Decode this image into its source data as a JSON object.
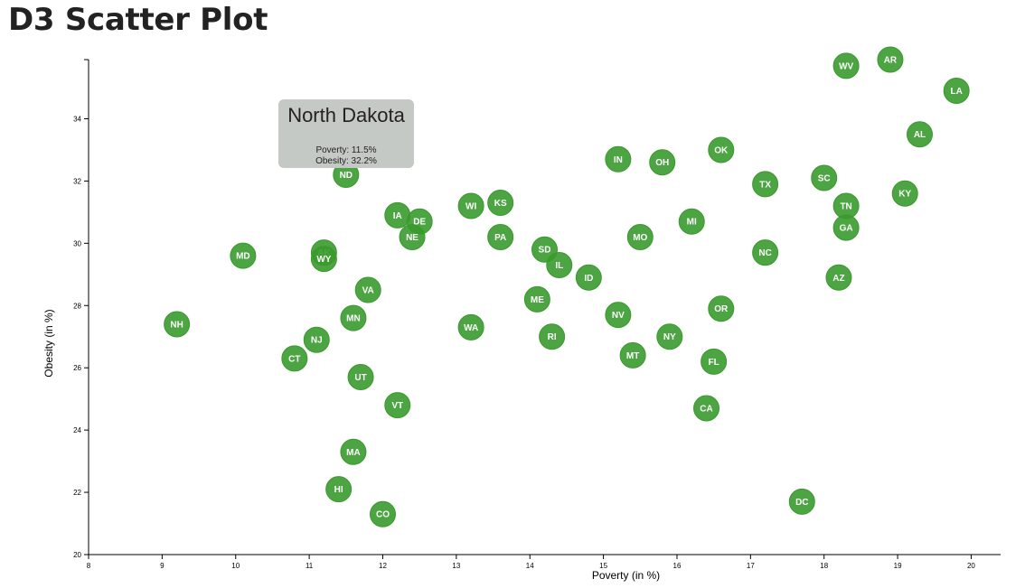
{
  "page": {
    "title": "D3 Scatter Plot"
  },
  "tooltip": {
    "state": "North Dakota",
    "poverty_line": "Poverty: 11.5%",
    "obesity_line": "Obesity: 32.2%"
  },
  "colors": {
    "point_fill": "#3a9a2e",
    "tooltip_bg": "#c5c9c5"
  },
  "chart_data": {
    "type": "scatter",
    "title": "D3 Scatter Plot",
    "xlabel": "Poverty (in %)",
    "ylabel": "Obesity (in %)",
    "xlim": [
      8,
      20.4
    ],
    "ylim": [
      20,
      35.9
    ],
    "xticks": [
      8,
      9,
      10,
      11,
      12,
      13,
      14,
      15,
      16,
      17,
      18,
      19,
      20
    ],
    "yticks": [
      20,
      22,
      24,
      26,
      28,
      30,
      32,
      34
    ],
    "grid": false,
    "points": [
      {
        "label": "WV",
        "x": 18.3,
        "y": 35.7
      },
      {
        "label": "AR",
        "x": 18.9,
        "y": 35.9
      },
      {
        "label": "LA",
        "x": 19.8,
        "y": 34.9
      },
      {
        "label": "AL",
        "x": 19.3,
        "y": 33.5
      },
      {
        "label": "OK",
        "x": 16.6,
        "y": 33.0
      },
      {
        "label": "IN",
        "x": 15.2,
        "y": 32.7
      },
      {
        "label": "OH",
        "x": 15.8,
        "y": 32.6
      },
      {
        "label": "ND",
        "x": 11.5,
        "y": 32.2
      },
      {
        "label": "SC",
        "x": 18.0,
        "y": 32.1
      },
      {
        "label": "TX",
        "x": 17.2,
        "y": 31.9
      },
      {
        "label": "KY",
        "x": 19.1,
        "y": 31.6
      },
      {
        "label": "KS",
        "x": 13.6,
        "y": 31.3
      },
      {
        "label": "WI",
        "x": 13.2,
        "y": 31.2
      },
      {
        "label": "TN",
        "x": 18.3,
        "y": 31.2
      },
      {
        "label": "IA",
        "x": 12.2,
        "y": 30.9
      },
      {
        "label": "DE",
        "x": 12.5,
        "y": 30.7
      },
      {
        "label": "MI",
        "x": 16.2,
        "y": 30.7
      },
      {
        "label": "GA",
        "x": 18.3,
        "y": 30.5
      },
      {
        "label": "NE",
        "x": 12.4,
        "y": 30.2
      },
      {
        "label": "PA",
        "x": 13.6,
        "y": 30.2
      },
      {
        "label": "MO",
        "x": 15.5,
        "y": 30.2
      },
      {
        "label": "SD",
        "x": 14.2,
        "y": 29.8
      },
      {
        "label": "AK",
        "x": 11.2,
        "y": 29.7
      },
      {
        "label": "NC",
        "x": 17.2,
        "y": 29.7
      },
      {
        "label": "MD",
        "x": 10.1,
        "y": 29.6
      },
      {
        "label": "WY",
        "x": 11.2,
        "y": 29.5
      },
      {
        "label": "IL",
        "x": 14.4,
        "y": 29.3
      },
      {
        "label": "ID",
        "x": 14.8,
        "y": 28.9
      },
      {
        "label": "AZ",
        "x": 18.2,
        "y": 28.9
      },
      {
        "label": "VA",
        "x": 11.8,
        "y": 28.5
      },
      {
        "label": "ME",
        "x": 14.1,
        "y": 28.2
      },
      {
        "label": "OR",
        "x": 16.6,
        "y": 27.9
      },
      {
        "label": "MN",
        "x": 11.6,
        "y": 27.6
      },
      {
        "label": "NV",
        "x": 15.2,
        "y": 27.7
      },
      {
        "label": "NH",
        "x": 9.2,
        "y": 27.4
      },
      {
        "label": "WA",
        "x": 13.2,
        "y": 27.3
      },
      {
        "label": "RI",
        "x": 14.3,
        "y": 27.0
      },
      {
        "label": "NY",
        "x": 15.9,
        "y": 27.0
      },
      {
        "label": "NJ",
        "x": 11.1,
        "y": 26.9
      },
      {
        "label": "MT",
        "x": 15.4,
        "y": 26.4
      },
      {
        "label": "CT",
        "x": 10.8,
        "y": 26.3
      },
      {
        "label": "FL",
        "x": 16.5,
        "y": 26.2
      },
      {
        "label": "UT",
        "x": 11.7,
        "y": 25.7
      },
      {
        "label": "VT",
        "x": 12.2,
        "y": 24.8
      },
      {
        "label": "CA",
        "x": 16.4,
        "y": 24.7
      },
      {
        "label": "MA",
        "x": 11.6,
        "y": 23.3
      },
      {
        "label": "HI",
        "x": 11.4,
        "y": 22.1
      },
      {
        "label": "DC",
        "x": 17.7,
        "y": 21.7
      },
      {
        "label": "CO",
        "x": 12.0,
        "y": 21.3
      }
    ]
  }
}
